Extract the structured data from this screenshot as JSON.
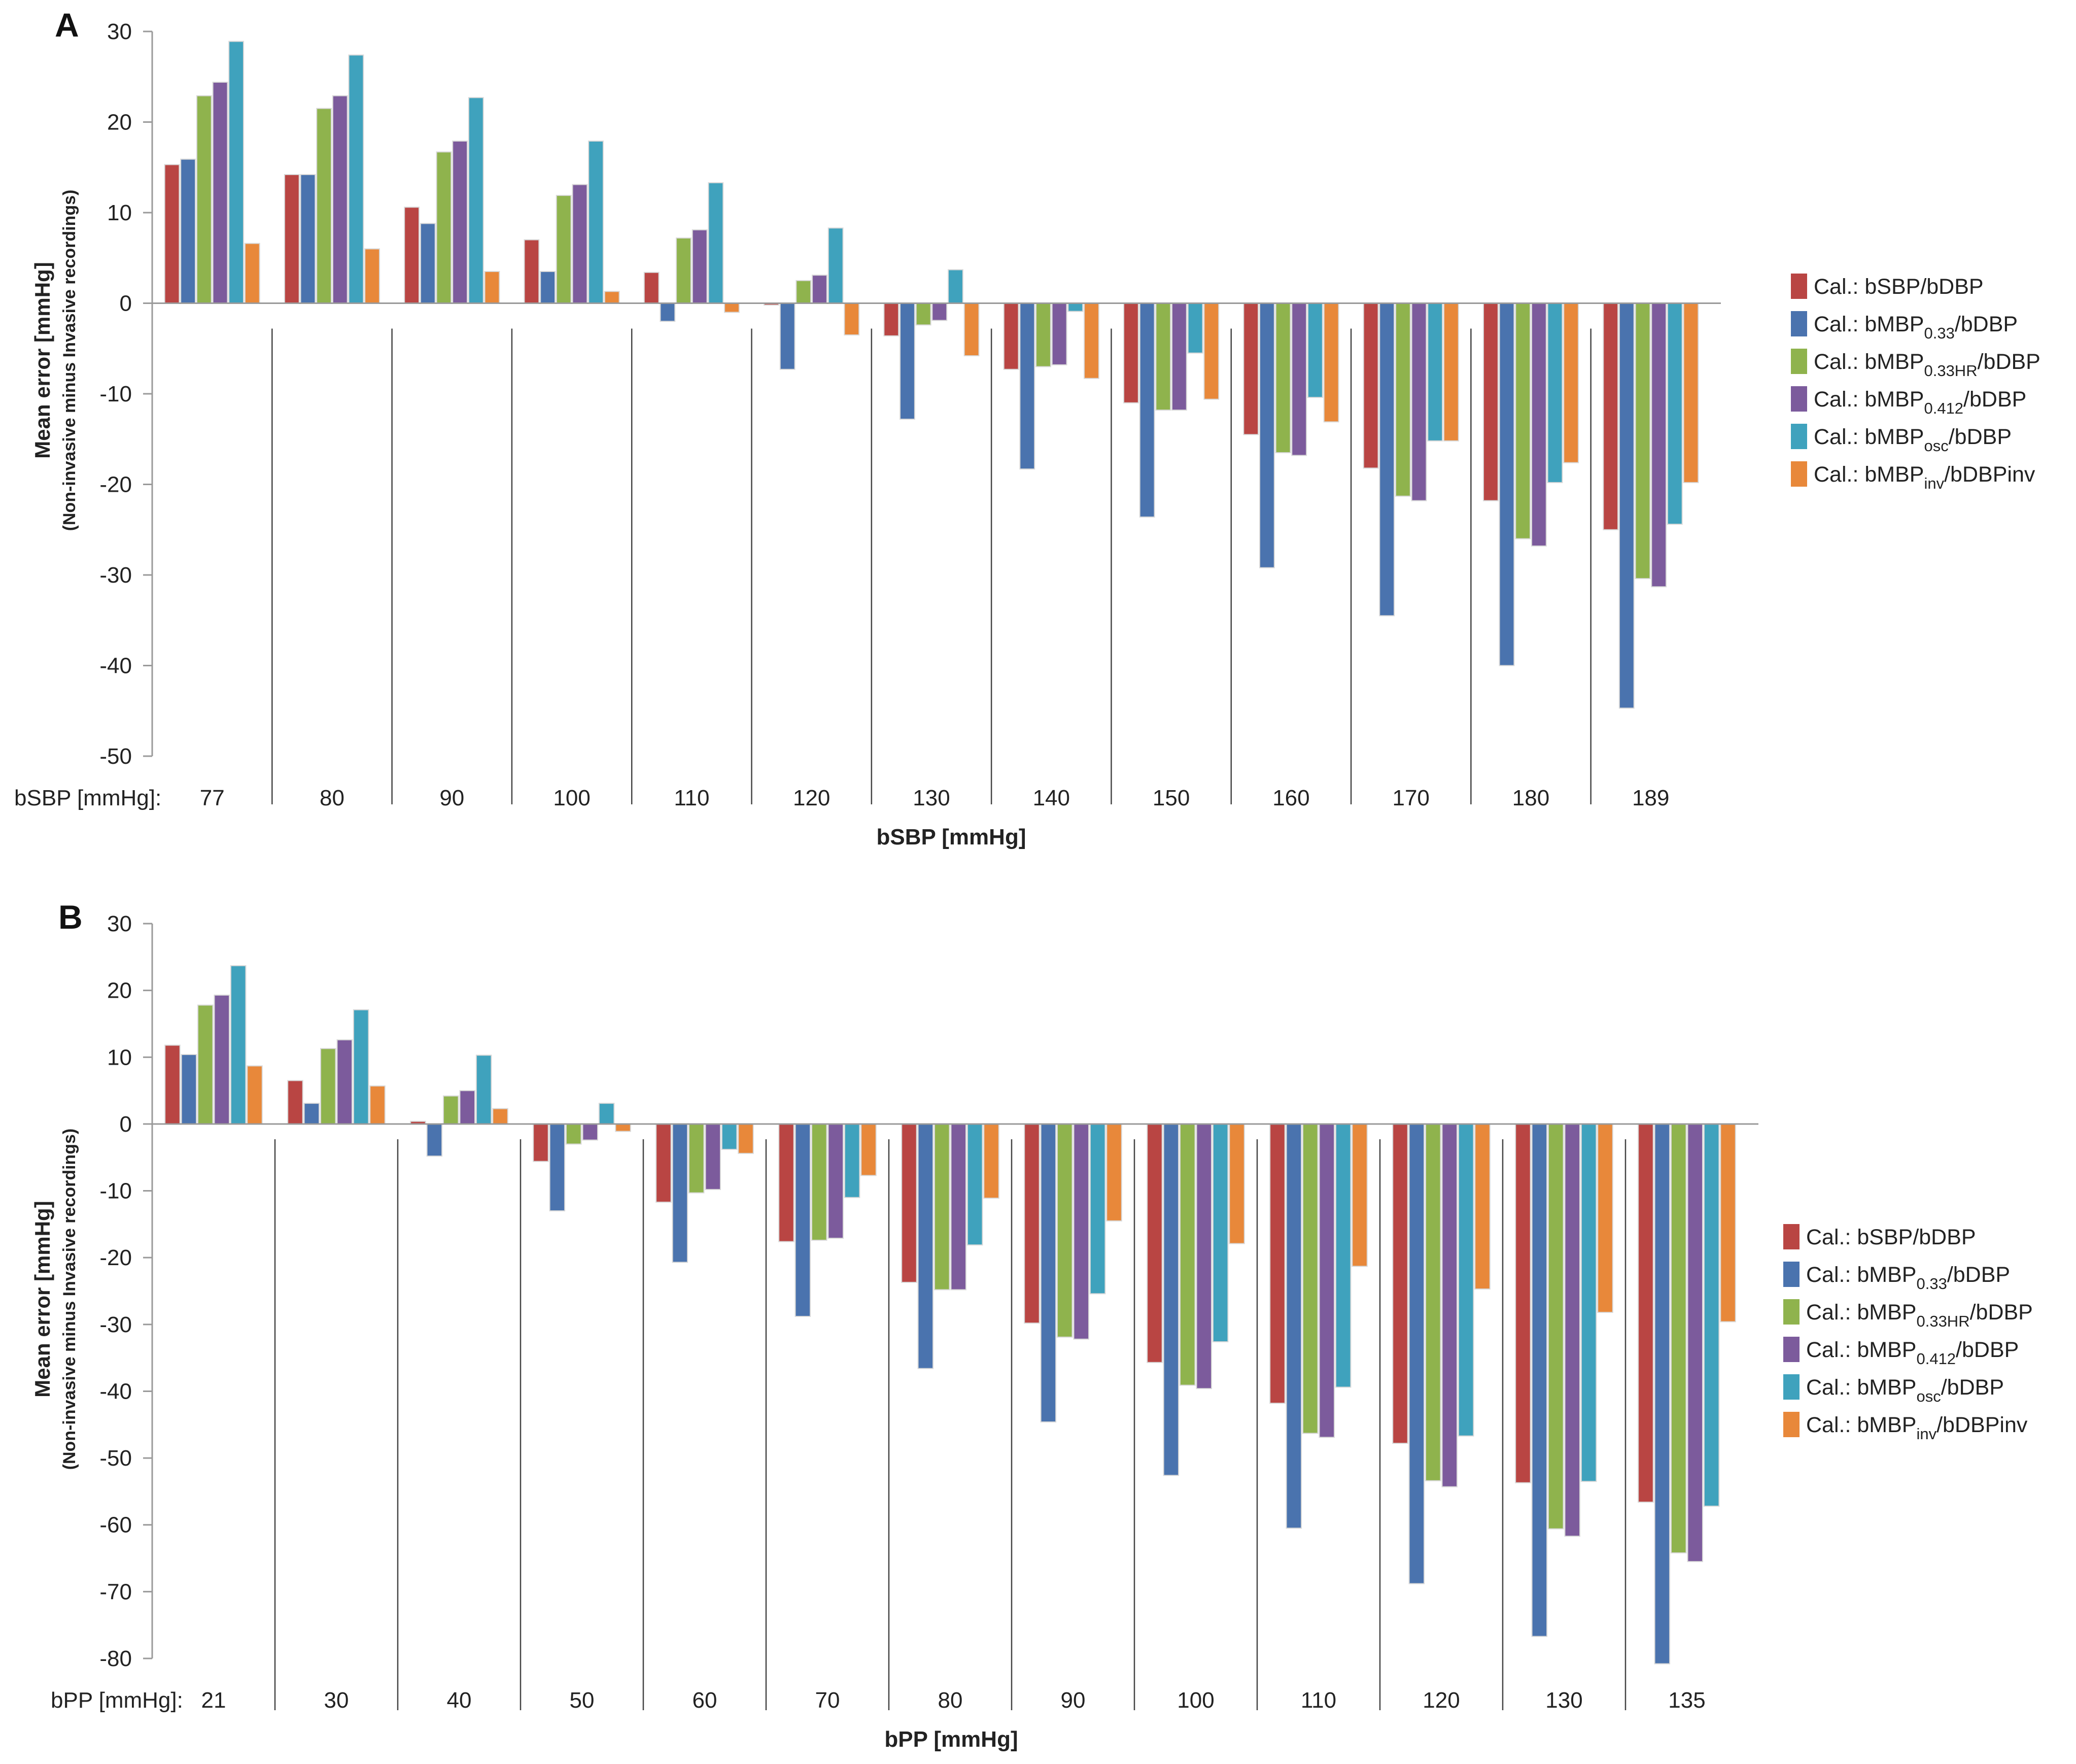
{
  "colors": {
    "series": [
      "#b94543",
      "#4a73ae",
      "#8fb34d",
      "#7c5b9c",
      "#3fa2bd",
      "#e8883a"
    ],
    "axis": "#9a9a9a",
    "separator": "#444444",
    "text": "#222222"
  },
  "legend_labels": [
    {
      "pre": "Cal.: bSBP/bDBP",
      "sub": "",
      "post": ""
    },
    {
      "pre": "Cal.: bMBP",
      "sub": "0.33",
      "post": "/bDBP"
    },
    {
      "pre": "Cal.: bMBP",
      "sub": "0.33HR",
      "post": "/bDBP"
    },
    {
      "pre": "Cal.: bMBP",
      "sub": "0.412",
      "post": "/bDBP"
    },
    {
      "pre": "Cal.: bMBP",
      "sub": "osc",
      "post": "/bDBP"
    },
    {
      "pre": "Cal.: bMBP",
      "sub": "inv",
      "post": "/bDBPinv"
    }
  ],
  "chart_data": [
    {
      "panel": "A",
      "type": "bar",
      "title": "",
      "ylabel": "Mean error [mmHg]",
      "ylabel_sub": "(Non-invasive minus Invasive recordings)",
      "xlabel": "bSBP [mmHg]",
      "row_label": "bSBP [mmHg]:",
      "ylim": [
        -50,
        30
      ],
      "yticks": [
        30,
        20,
        10,
        0,
        -10,
        -20,
        -30,
        -40,
        -50
      ],
      "categories": [
        "77",
        "80",
        "90",
        "100",
        "110",
        "120",
        "130",
        "140",
        "150",
        "160",
        "170",
        "180",
        "189"
      ],
      "series": [
        {
          "name": "Cal.: bSBP/bDBP",
          "values": [
            15.3,
            14.2,
            10.6,
            7.0,
            3.4,
            -0.2,
            -3.6,
            -7.3,
            -11.0,
            -14.5,
            -18.2,
            -21.8,
            -25.0
          ]
        },
        {
          "name": "Cal.: bMBP0.33/bDBP",
          "values": [
            15.9,
            14.2,
            8.8,
            3.5,
            -2.0,
            -7.3,
            -12.8,
            -18.3,
            -23.6,
            -29.2,
            -34.5,
            -40.0,
            -44.7
          ]
        },
        {
          "name": "Cal.: bMBP0.33HR/bDBP",
          "values": [
            22.9,
            21.5,
            16.7,
            11.9,
            7.2,
            2.5,
            -2.4,
            -7.0,
            -11.8,
            -16.5,
            -21.3,
            -26.0,
            -30.4
          ]
        },
        {
          "name": "Cal.: bMBP0.412/bDBP",
          "values": [
            24.4,
            22.9,
            17.9,
            13.1,
            8.1,
            3.1,
            -1.9,
            -6.8,
            -11.8,
            -16.8,
            -21.8,
            -26.8,
            -31.3
          ]
        },
        {
          "name": "Cal.: bMBPosc/bDBP",
          "values": [
            28.9,
            27.4,
            22.7,
            17.9,
            13.3,
            8.3,
            3.7,
            -0.9,
            -5.5,
            -10.4,
            -15.2,
            -19.8,
            -24.4
          ]
        },
        {
          "name": "Cal.: bMBPinv/bDBPinv",
          "values": [
            6.6,
            6.0,
            3.5,
            1.3,
            -1.0,
            -3.5,
            -5.8,
            -8.3,
            -10.6,
            -13.1,
            -15.2,
            -17.6,
            -19.8
          ]
        }
      ]
    },
    {
      "panel": "B",
      "type": "bar",
      "title": "",
      "ylabel": "Mean error [mmHg]",
      "ylabel_sub": "(Non-invasive minus Invasive recordings)",
      "xlabel": "bPP [mmHg]",
      "row_label": "bPP [mmHg]:",
      "ylim": [
        -80,
        30
      ],
      "yticks": [
        30,
        20,
        10,
        0,
        -10,
        -20,
        -30,
        -40,
        -50,
        -60,
        -70,
        -80
      ],
      "categories": [
        "21",
        "30",
        "40",
        "50",
        "60",
        "70",
        "80",
        "90",
        "100",
        "110",
        "120",
        "130",
        "135"
      ],
      "series": [
        {
          "name": "Cal.: bSBP/bDBP",
          "values": [
            11.8,
            6.5,
            0.4,
            -5.6,
            -11.7,
            -17.6,
            -23.7,
            -29.8,
            -35.7,
            -41.8,
            -47.8,
            -53.7,
            -56.6
          ]
        },
        {
          "name": "Cal.: bMBP0.33/bDBP",
          "values": [
            10.4,
            3.1,
            -4.8,
            -13.0,
            -20.7,
            -28.8,
            -36.6,
            -44.6,
            -52.6,
            -60.5,
            -68.8,
            -76.7,
            -80.8
          ]
        },
        {
          "name": "Cal.: bMBP0.33HR/bDBP",
          "values": [
            17.8,
            11.3,
            4.2,
            -3.0,
            -10.3,
            -17.4,
            -24.8,
            -31.9,
            -39.1,
            -46.3,
            -53.4,
            -60.6,
            -64.2
          ]
        },
        {
          "name": "Cal.: bMBP0.412/bDBP",
          "values": [
            19.3,
            12.6,
            5.0,
            -2.4,
            -9.8,
            -17.1,
            -24.8,
            -32.2,
            -39.6,
            -46.9,
            -54.3,
            -61.7,
            -65.5
          ]
        },
        {
          "name": "Cal.: bMBPosc/bDBP",
          "values": [
            23.7,
            17.1,
            10.3,
            3.1,
            -3.8,
            -11.0,
            -18.1,
            -25.4,
            -32.6,
            -39.4,
            -46.7,
            -53.5,
            -57.2
          ]
        },
        {
          "name": "Cal.: bMBPinv/bDBPinv",
          "values": [
            8.7,
            5.7,
            2.3,
            -1.1,
            -4.4,
            -7.7,
            -11.1,
            -14.5,
            -17.9,
            -21.3,
            -24.7,
            -28.2,
            -29.6
          ]
        }
      ]
    }
  ]
}
